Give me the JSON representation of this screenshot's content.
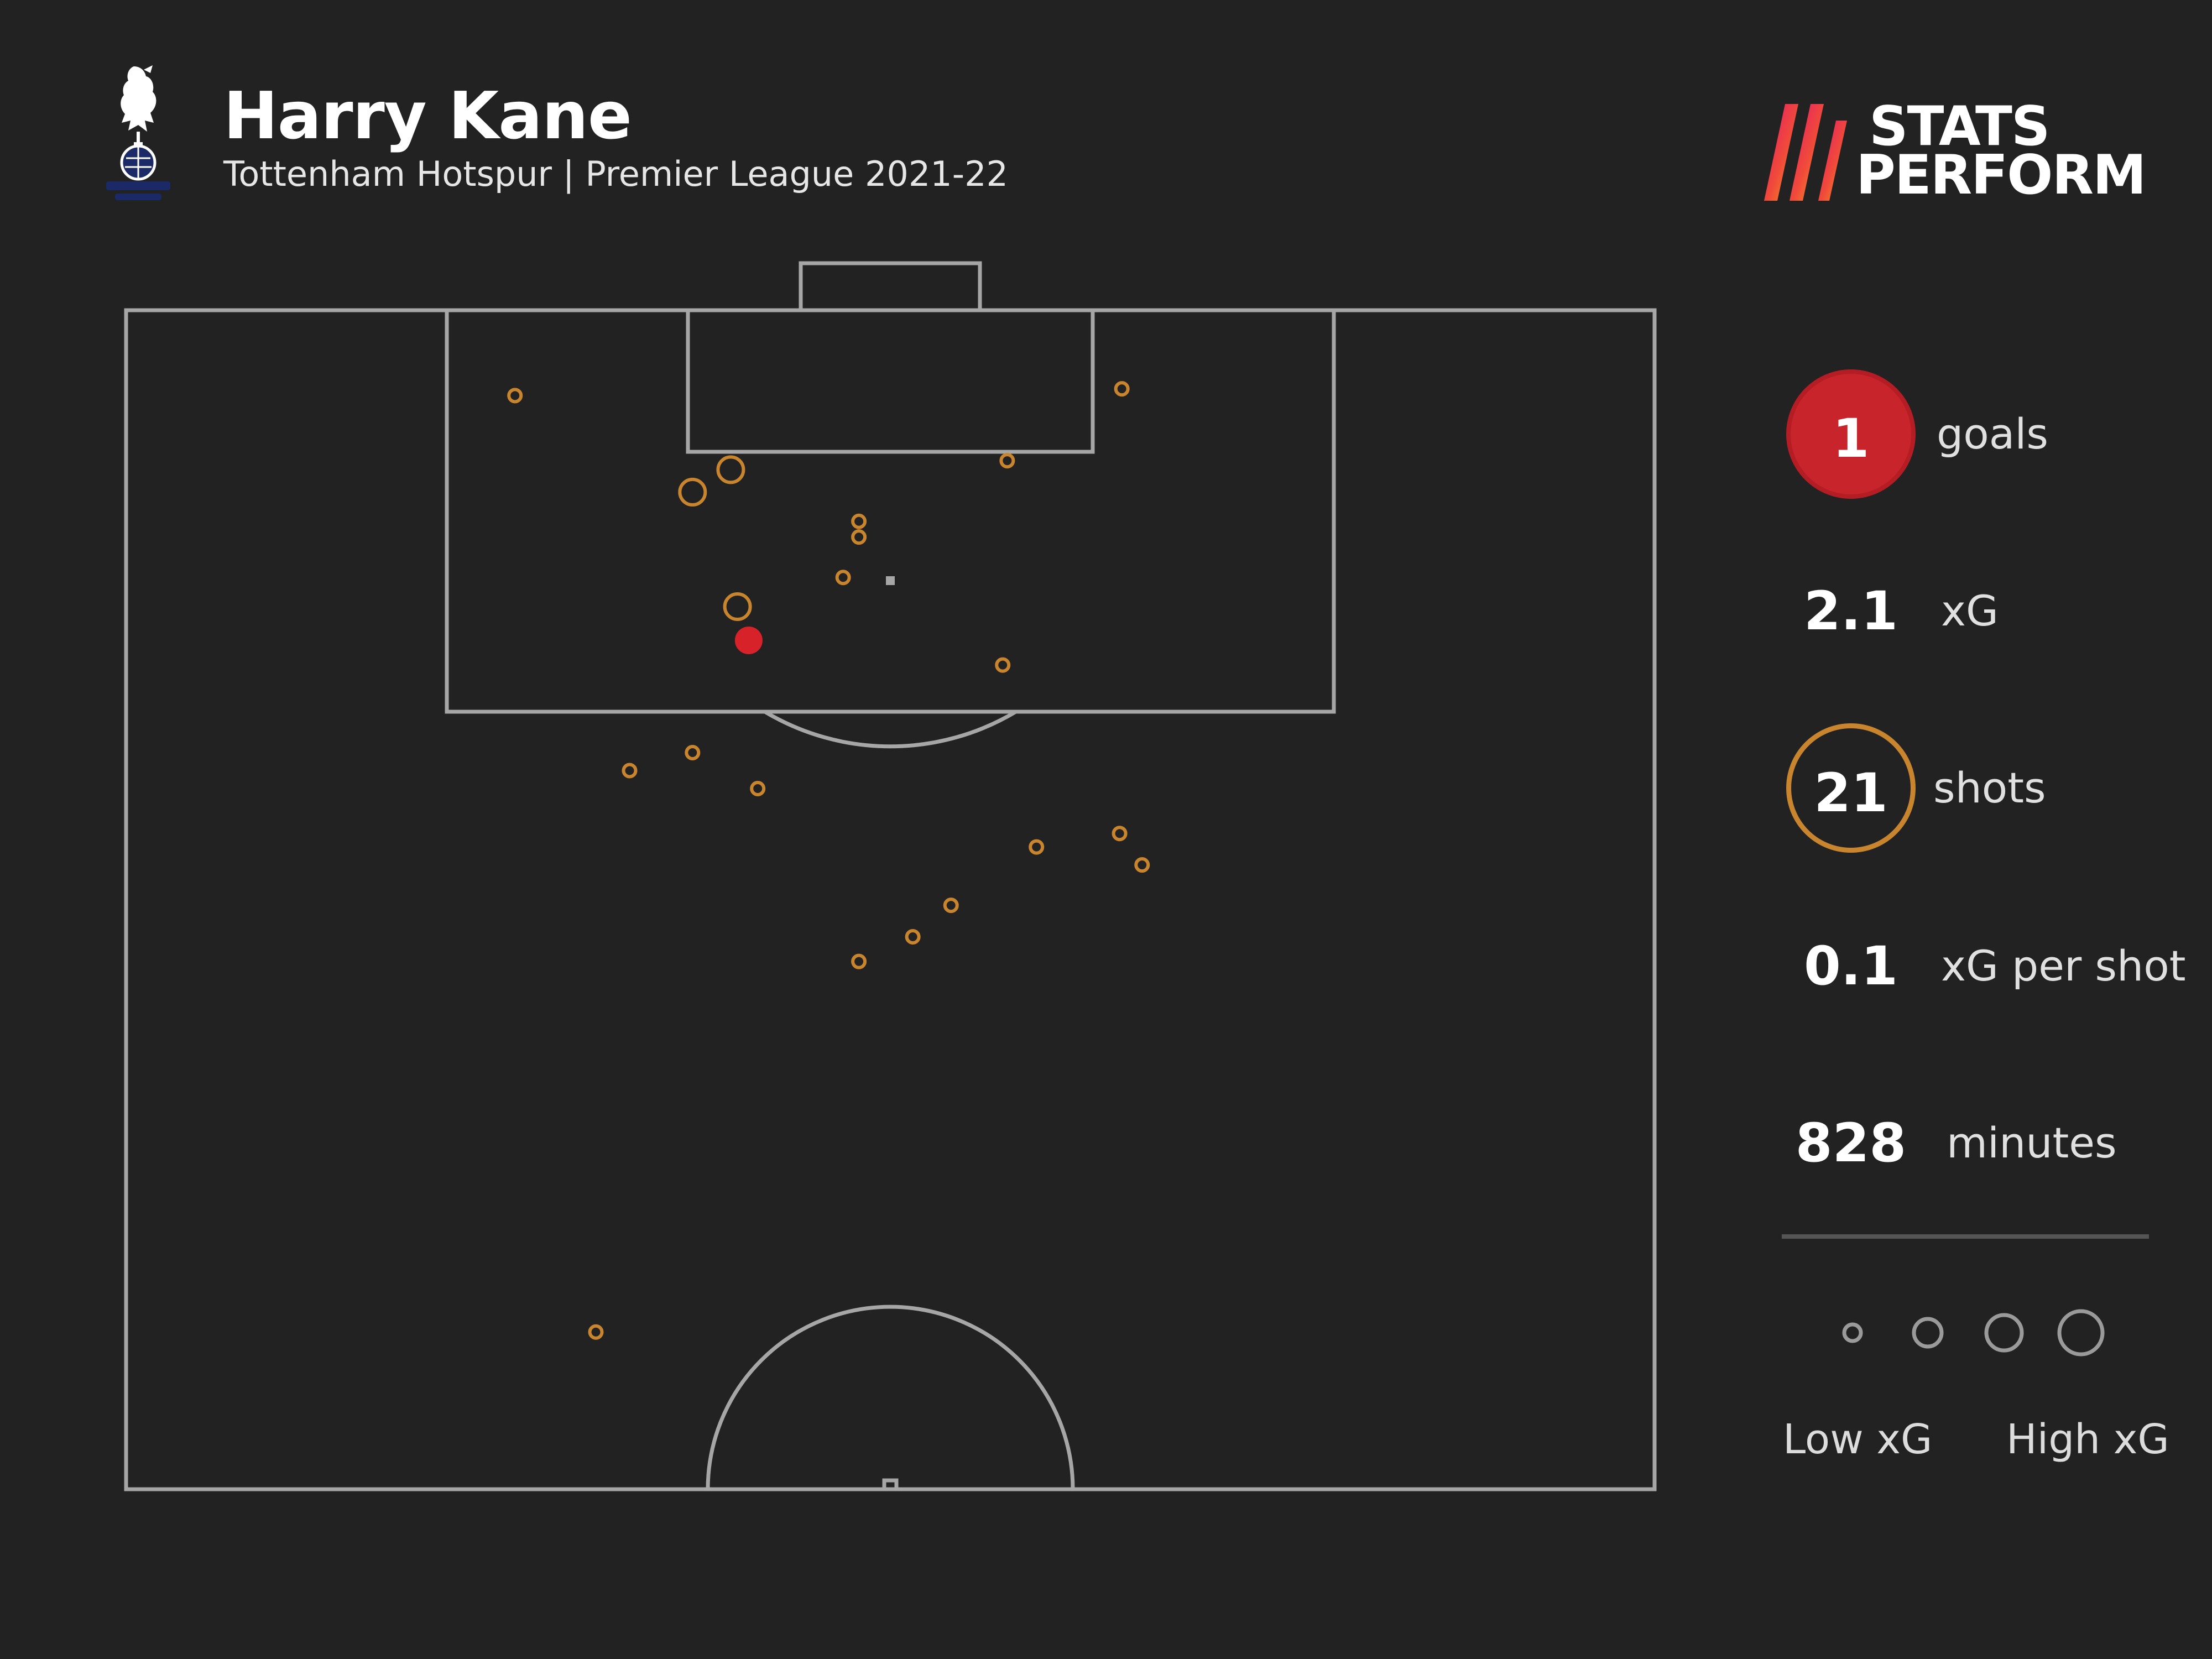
{
  "header": {
    "player_name": "Harry Kane",
    "subtitle": "Tottenham Hotspur | Premier League 2021-22",
    "crest_icon": "tottenham-crest-icon",
    "brand_line1": "STATS",
    "brand_line2": "PERFORM"
  },
  "stats": {
    "goals_value": "1",
    "goals_label": "goals",
    "xg_value": "2.1",
    "xg_label": "xG",
    "shots_value": "21",
    "shots_label": "shots",
    "xg_per_shot_value": "0.1",
    "xg_per_shot_label": "xG per shot",
    "minutes_value": "828",
    "minutes_label": "minutes"
  },
  "legend": {
    "low_label": "Low xG",
    "high_label": "High xG",
    "levels": [
      "low",
      "medium-low",
      "medium-high",
      "high"
    ]
  },
  "colors": {
    "background": "#222222",
    "pitch_lines": "#a6a6a6",
    "shot": "#c8852d",
    "goal": "#d8222a",
    "legend_circles": "#9a9a9a"
  },
  "chart_data": {
    "type": "scatter",
    "title": "",
    "xlabel": "",
    "ylabel": "",
    "note": "Shot map on a half pitch. x = metres from the left touchline (0-68), y = metres from the goal line (0-52.5). size = xG bucket 1 (low) to 4 (high).",
    "xlim": [
      0,
      68
    ],
    "ylim": [
      0,
      52.5
    ],
    "shots": [
      {
        "x": 17.3,
        "y": 3.8,
        "size": 1,
        "goal": false
      },
      {
        "x": 44.3,
        "y": 3.5,
        "size": 1,
        "goal": false
      },
      {
        "x": 39.2,
        "y": 6.7,
        "size": 1,
        "goal": false
      },
      {
        "x": 26.9,
        "y": 7.1,
        "size": 3,
        "goal": false
      },
      {
        "x": 25.2,
        "y": 8.1,
        "size": 3,
        "goal": false
      },
      {
        "x": 32.6,
        "y": 9.4,
        "size": 1,
        "goal": false
      },
      {
        "x": 32.6,
        "y": 10.1,
        "size": 1,
        "goal": false
      },
      {
        "x": 31.9,
        "y": 11.9,
        "size": 1,
        "goal": false
      },
      {
        "x": 27.2,
        "y": 13.2,
        "size": 3,
        "goal": false
      },
      {
        "x": 27.7,
        "y": 14.7,
        "size": 3,
        "goal": true
      },
      {
        "x": 39.0,
        "y": 15.8,
        "size": 1,
        "goal": false
      },
      {
        "x": 25.2,
        "y": 19.7,
        "size": 1,
        "goal": false
      },
      {
        "x": 22.4,
        "y": 20.5,
        "size": 1,
        "goal": false
      },
      {
        "x": 28.1,
        "y": 21.3,
        "size": 1,
        "goal": false
      },
      {
        "x": 44.2,
        "y": 23.3,
        "size": 1,
        "goal": false
      },
      {
        "x": 40.5,
        "y": 23.9,
        "size": 1,
        "goal": false
      },
      {
        "x": 45.2,
        "y": 24.7,
        "size": 1,
        "goal": false
      },
      {
        "x": 36.7,
        "y": 26.5,
        "size": 1,
        "goal": false
      },
      {
        "x": 35.0,
        "y": 27.9,
        "size": 1,
        "goal": false
      },
      {
        "x": 32.6,
        "y": 29.0,
        "size": 1,
        "goal": false
      },
      {
        "x": 20.9,
        "y": 45.5,
        "size": 1,
        "goal": false
      }
    ]
  }
}
